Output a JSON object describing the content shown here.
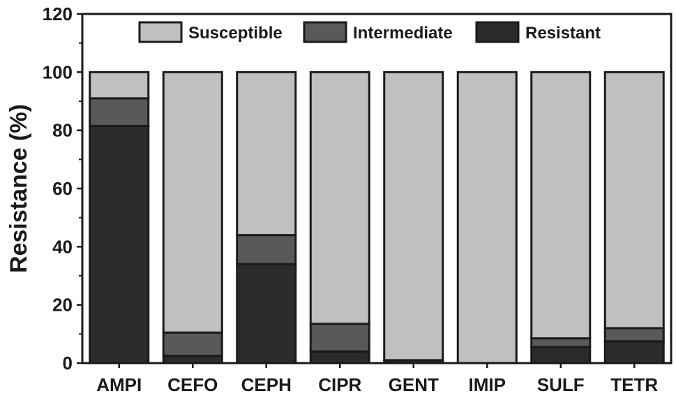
{
  "chart_data": {
    "type": "bar",
    "stacked": true,
    "title": "",
    "xlabel": "",
    "ylabel": "Resistance (%)",
    "ylim": [
      0,
      120
    ],
    "yticks": [
      0,
      20,
      40,
      60,
      80,
      100,
      120
    ],
    "grid": false,
    "legend_position": "top",
    "categories": [
      "AMPI",
      "CEFO",
      "CEPH",
      "CIPR",
      "GENT",
      "IMIP",
      "SULF",
      "TETR"
    ],
    "series": [
      {
        "name": "Resistant",
        "color": "#2b2b2b",
        "values": [
          81.5,
          2.5,
          34,
          4,
          1,
          0,
          5.5,
          7.5
        ]
      },
      {
        "name": "Intermediate",
        "color": "#595959",
        "values": [
          9.5,
          8,
          10,
          9.5,
          0,
          0,
          3,
          4.5
        ]
      },
      {
        "name": "Susceptible",
        "color": "#c0c0c0",
        "values": [
          9,
          89.5,
          56,
          86.5,
          99,
          100,
          91.5,
          88
        ]
      }
    ],
    "legend_order": [
      "Susceptible",
      "Intermediate",
      "Resistant"
    ]
  }
}
